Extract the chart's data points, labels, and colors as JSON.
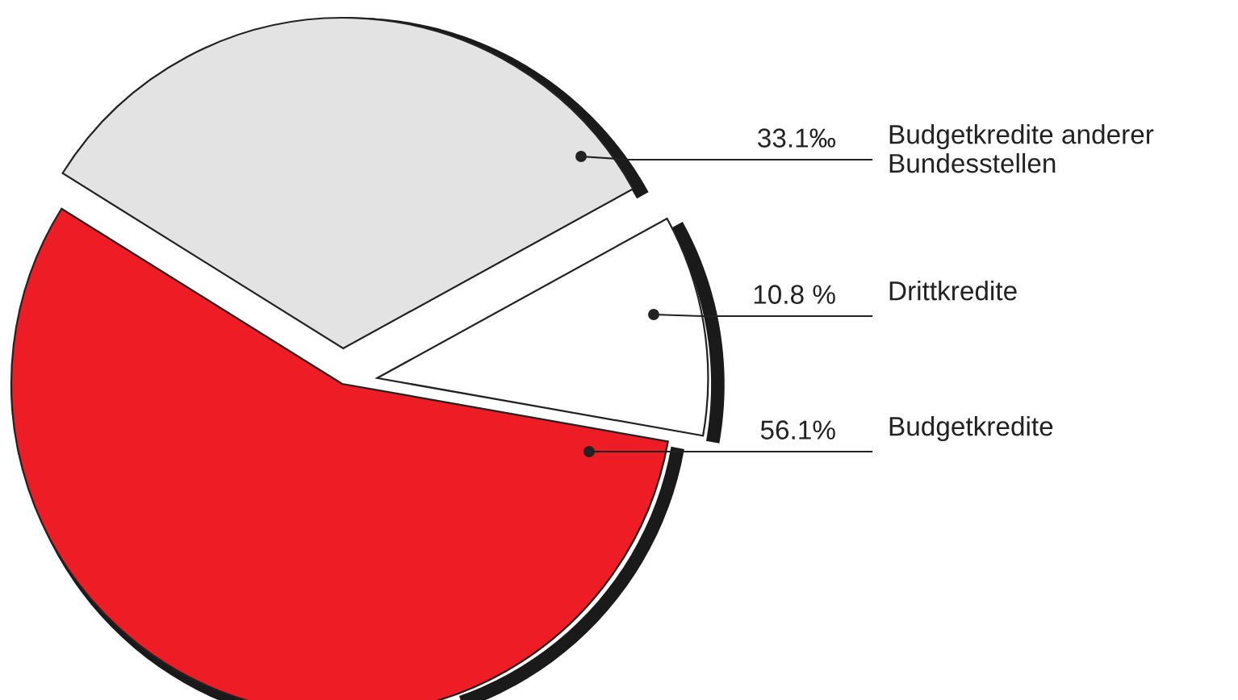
{
  "chart_data": {
    "type": "pie",
    "categories": [
      "Budgetkredite anderer Bundesstellen",
      "Drittkredite",
      "Budgetkredite"
    ],
    "values": [
      33.1,
      10.8,
      56.1
    ],
    "value_labels": [
      "33.1‰",
      "10.8 %",
      "56.1%"
    ],
    "colors": [
      "#e3e3e3",
      "#ffffff",
      "#ee1c25"
    ]
  }
}
